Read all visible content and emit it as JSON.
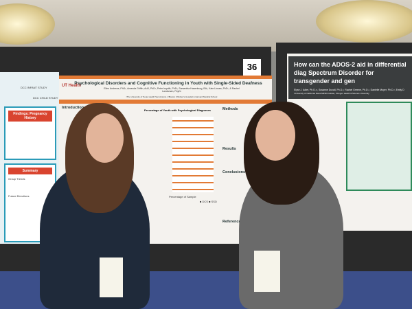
{
  "poster_left": {
    "logos": [
      "DCC INFANT STUDY",
      "DCC CHILD STUDY"
    ],
    "findings_title": "Findings: Pregnancy History",
    "summary_title": "Summary",
    "group_trends": "Group Trends",
    "future_directions": "Future Directions"
  },
  "poster_center": {
    "logo": "UT Health",
    "title": "Psychological Disorders and Cognitive Functioning in Youth with Single-Sided Deafness",
    "authors": "Ellen Andrews, PhD¹, Amanda Griffin, AuD, PhD², Peter Isquith, PhD², Samantha Hasenburg, BA¹, Kate Linsea, PhD¹, & Rachel Landsman, PsyD²",
    "affiliations": "¹The University of Texas Health San Antonio | ²Boston Children's Hospital & Harvard Medical School",
    "sections": [
      "Introduction",
      "Methods",
      "Results",
      "Conclusions",
      "References"
    ],
    "chart_title": "Percentage of Youth with Psychological Diagnoses",
    "chart_xlabel": "Percentage of Sample",
    "legend": "■ DCS ■ SSD",
    "board_number": "36"
  },
  "poster_right": {
    "title": "How can the ADOS-2 aid in differential diag Spectrum Disorder for transgender and gen",
    "authors": "Elyse J. Adler, Ph.D.¹², Susanne Duvall, Ph.D.², Rachel Greene, Ph.D.², Danielle Moyer, Ph.D.², Emily D",
    "affiliations": "¹University of California Davis MIND Institute, ²Oregon Health & Science University"
  },
  "colors": {
    "orange": "#e27a35",
    "teal": "#2a9bb8",
    "red": "#d9442f",
    "dark_header": "#3a3d3e"
  }
}
